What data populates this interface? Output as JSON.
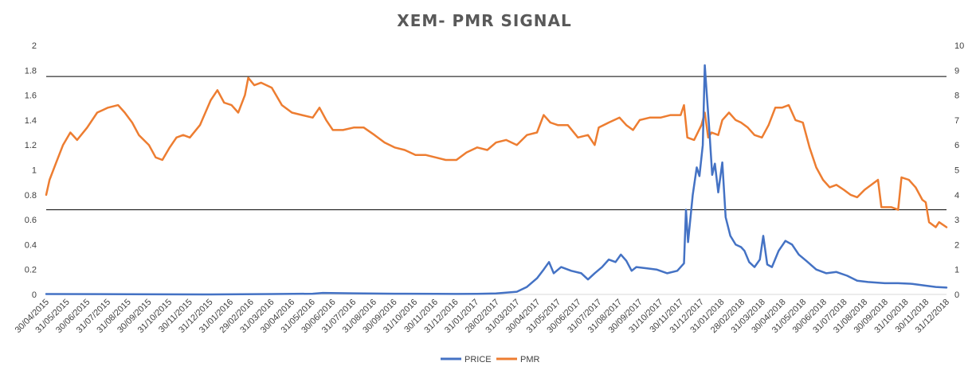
{
  "chart_data": {
    "type": "line",
    "title": "XEM- PMR SIGNAL",
    "xlabel": "",
    "ylabel": "",
    "y_left": {
      "min": 0,
      "max": 2,
      "ticks": [
        "0",
        "0.2",
        "0.4",
        "0.6",
        "0.8",
        "1",
        "1.2",
        "1.4",
        "1.6",
        "1.8",
        "2"
      ]
    },
    "y_right": {
      "min": 0,
      "max": 10,
      "ticks": [
        "0",
        "1",
        "2",
        "3",
        "4",
        "5",
        "6",
        "7",
        "8",
        "9",
        "10"
      ]
    },
    "x_range": [
      "2015-04-30",
      "2018-12-31"
    ],
    "x_tick_labels": [
      "30/04/2015",
      "31/05/2015",
      "30/06/2015",
      "31/07/2015",
      "31/08/2015",
      "30/09/2015",
      "31/10/2015",
      "30/11/2015",
      "31/12/2015",
      "31/01/2016",
      "29/02/2016",
      "31/03/2016",
      "30/04/2016",
      "31/05/2016",
      "30/06/2016",
      "31/07/2016",
      "31/08/2016",
      "30/09/2016",
      "31/10/2016",
      "30/11/2016",
      "31/12/2016",
      "31/01/2017",
      "28/02/2017",
      "31/03/2017",
      "30/04/2017",
      "31/05/2017",
      "30/06/2017",
      "31/07/2017",
      "31/08/2017",
      "30/09/2017",
      "31/10/2017",
      "30/11/2017",
      "31/12/2017",
      "31/01/2018",
      "28/02/2018",
      "31/03/2018",
      "30/04/2018",
      "31/05/2018",
      "30/06/2018",
      "31/07/2018",
      "31/08/2018",
      "30/09/2018",
      "31/10/2018",
      "30/11/2018",
      "31/12/2018"
    ],
    "reference_lines": [
      {
        "axis": "right",
        "value": 8.75
      },
      {
        "axis": "right",
        "value": 3.4
      }
    ],
    "series": [
      {
        "name": "PRICE",
        "axis": "left",
        "color": "#4472C4",
        "points": [
          [
            "2015-04-30",
            0.003
          ],
          [
            "2015-08-31",
            0.002
          ],
          [
            "2015-12-31",
            0.0003
          ],
          [
            "2016-03-31",
            0.003
          ],
          [
            "2016-05-31",
            0.006
          ],
          [
            "2016-06-15",
            0.012
          ],
          [
            "2016-07-31",
            0.009
          ],
          [
            "2016-09-30",
            0.006
          ],
          [
            "2016-11-30",
            0.005
          ],
          [
            "2016-12-31",
            0.004
          ],
          [
            "2017-01-31",
            0.005
          ],
          [
            "2017-02-28",
            0.008
          ],
          [
            "2017-03-15",
            0.015
          ],
          [
            "2017-03-31",
            0.022
          ],
          [
            "2017-04-15",
            0.06
          ],
          [
            "2017-04-30",
            0.13
          ],
          [
            "2017-05-10",
            0.2
          ],
          [
            "2017-05-18",
            0.26
          ],
          [
            "2017-05-25",
            0.17
          ],
          [
            "2017-06-05",
            0.22
          ],
          [
            "2017-06-20",
            0.19
          ],
          [
            "2017-07-05",
            0.17
          ],
          [
            "2017-07-15",
            0.12
          ],
          [
            "2017-07-25",
            0.17
          ],
          [
            "2017-08-05",
            0.22
          ],
          [
            "2017-08-15",
            0.28
          ],
          [
            "2017-08-25",
            0.26
          ],
          [
            "2017-09-02",
            0.32
          ],
          [
            "2017-09-10",
            0.27
          ],
          [
            "2017-09-18",
            0.19
          ],
          [
            "2017-09-25",
            0.22
          ],
          [
            "2017-10-10",
            0.21
          ],
          [
            "2017-10-25",
            0.2
          ],
          [
            "2017-11-10",
            0.17
          ],
          [
            "2017-11-25",
            0.19
          ],
          [
            "2017-12-05",
            0.25
          ],
          [
            "2017-12-08",
            0.68
          ],
          [
            "2017-12-11",
            0.42
          ],
          [
            "2017-12-18",
            0.8
          ],
          [
            "2017-12-24",
            1.02
          ],
          [
            "2017-12-28",
            0.95
          ],
          [
            "2018-01-02",
            1.2
          ],
          [
            "2018-01-05",
            1.84
          ],
          [
            "2018-01-08",
            1.6
          ],
          [
            "2018-01-12",
            1.3
          ],
          [
            "2018-01-16",
            0.96
          ],
          [
            "2018-01-20",
            1.05
          ],
          [
            "2018-01-25",
            0.82
          ],
          [
            "2018-01-31",
            1.06
          ],
          [
            "2018-02-05",
            0.62
          ],
          [
            "2018-02-12",
            0.47
          ],
          [
            "2018-02-20",
            0.4
          ],
          [
            "2018-02-28",
            0.38
          ],
          [
            "2018-03-05",
            0.35
          ],
          [
            "2018-03-12",
            0.26
          ],
          [
            "2018-03-20",
            0.22
          ],
          [
            "2018-03-28",
            0.28
          ],
          [
            "2018-04-02",
            0.47
          ],
          [
            "2018-04-08",
            0.24
          ],
          [
            "2018-04-15",
            0.22
          ],
          [
            "2018-04-25",
            0.35
          ],
          [
            "2018-05-05",
            0.43
          ],
          [
            "2018-05-15",
            0.4
          ],
          [
            "2018-05-25",
            0.32
          ],
          [
            "2018-06-05",
            0.27
          ],
          [
            "2018-06-20",
            0.2
          ],
          [
            "2018-07-05",
            0.17
          ],
          [
            "2018-07-20",
            0.18
          ],
          [
            "2018-08-05",
            0.15
          ],
          [
            "2018-08-20",
            0.11
          ],
          [
            "2018-09-05",
            0.1
          ],
          [
            "2018-09-30",
            0.09
          ],
          [
            "2018-10-20",
            0.09
          ],
          [
            "2018-11-10",
            0.085
          ],
          [
            "2018-11-30",
            0.07
          ],
          [
            "2018-12-15",
            0.06
          ],
          [
            "2018-12-31",
            0.055
          ]
        ]
      },
      {
        "name": "PMR",
        "axis": "right",
        "color": "#ED7D31",
        "points": [
          [
            "2015-04-30",
            4.0
          ],
          [
            "2015-05-05",
            4.6
          ],
          [
            "2015-05-15",
            5.3
          ],
          [
            "2015-05-25",
            6.0
          ],
          [
            "2015-06-05",
            6.5
          ],
          [
            "2015-06-15",
            6.2
          ],
          [
            "2015-06-30",
            6.7
          ],
          [
            "2015-07-15",
            7.3
          ],
          [
            "2015-07-31",
            7.5
          ],
          [
            "2015-08-15",
            7.6
          ],
          [
            "2015-08-25",
            7.3
          ],
          [
            "2015-09-05",
            6.9
          ],
          [
            "2015-09-15",
            6.4
          ],
          [
            "2015-09-30",
            6.0
          ],
          [
            "2015-10-10",
            5.5
          ],
          [
            "2015-10-20",
            5.4
          ],
          [
            "2015-10-31",
            5.9
          ],
          [
            "2015-11-10",
            6.3
          ],
          [
            "2015-11-20",
            6.4
          ],
          [
            "2015-11-30",
            6.3
          ],
          [
            "2015-12-15",
            6.8
          ],
          [
            "2015-12-31",
            7.8
          ],
          [
            "2016-01-10",
            8.2
          ],
          [
            "2016-01-20",
            7.7
          ],
          [
            "2016-01-31",
            7.6
          ],
          [
            "2016-02-10",
            7.3
          ],
          [
            "2016-02-20",
            8.0
          ],
          [
            "2016-02-25",
            8.7
          ],
          [
            "2016-03-05",
            8.4
          ],
          [
            "2016-03-15",
            8.5
          ],
          [
            "2016-03-31",
            8.3
          ],
          [
            "2016-04-15",
            7.6
          ],
          [
            "2016-04-30",
            7.3
          ],
          [
            "2016-05-15",
            7.2
          ],
          [
            "2016-05-31",
            7.1
          ],
          [
            "2016-06-10",
            7.5
          ],
          [
            "2016-06-20",
            7.0
          ],
          [
            "2016-06-30",
            6.6
          ],
          [
            "2016-07-15",
            6.6
          ],
          [
            "2016-07-31",
            6.7
          ],
          [
            "2016-08-15",
            6.7
          ],
          [
            "2016-08-31",
            6.4
          ],
          [
            "2016-09-15",
            6.1
          ],
          [
            "2016-09-30",
            5.9
          ],
          [
            "2016-10-15",
            5.8
          ],
          [
            "2016-10-31",
            5.6
          ],
          [
            "2016-11-15",
            5.6
          ],
          [
            "2016-11-30",
            5.5
          ],
          [
            "2016-12-15",
            5.4
          ],
          [
            "2016-12-31",
            5.4
          ],
          [
            "2017-01-15",
            5.7
          ],
          [
            "2017-01-31",
            5.9
          ],
          [
            "2017-02-15",
            5.8
          ],
          [
            "2017-02-28",
            6.1
          ],
          [
            "2017-03-15",
            6.2
          ],
          [
            "2017-03-31",
            6.0
          ],
          [
            "2017-04-15",
            6.4
          ],
          [
            "2017-04-30",
            6.5
          ],
          [
            "2017-05-10",
            7.2
          ],
          [
            "2017-05-20",
            6.9
          ],
          [
            "2017-05-31",
            6.8
          ],
          [
            "2017-06-15",
            6.8
          ],
          [
            "2017-06-30",
            6.3
          ],
          [
            "2017-07-15",
            6.4
          ],
          [
            "2017-07-25",
            6.0
          ],
          [
            "2017-07-31",
            6.7
          ],
          [
            "2017-08-15",
            6.9
          ],
          [
            "2017-08-31",
            7.1
          ],
          [
            "2017-09-10",
            6.8
          ],
          [
            "2017-09-20",
            6.6
          ],
          [
            "2017-09-30",
            7.0
          ],
          [
            "2017-10-15",
            7.1
          ],
          [
            "2017-10-31",
            7.1
          ],
          [
            "2017-11-15",
            7.2
          ],
          [
            "2017-11-30",
            7.2
          ],
          [
            "2017-12-05",
            7.6
          ],
          [
            "2017-12-10",
            6.3
          ],
          [
            "2017-12-20",
            6.2
          ],
          [
            "2017-12-31",
            6.8
          ],
          [
            "2018-01-05",
            7.3
          ],
          [
            "2018-01-10",
            6.3
          ],
          [
            "2018-01-15",
            6.5
          ],
          [
            "2018-01-25",
            6.4
          ],
          [
            "2018-01-31",
            7.0
          ],
          [
            "2018-02-10",
            7.3
          ],
          [
            "2018-02-20",
            7.0
          ],
          [
            "2018-02-28",
            6.9
          ],
          [
            "2018-03-10",
            6.7
          ],
          [
            "2018-03-20",
            6.4
          ],
          [
            "2018-03-31",
            6.3
          ],
          [
            "2018-04-10",
            6.8
          ],
          [
            "2018-04-20",
            7.5
          ],
          [
            "2018-04-30",
            7.5
          ],
          [
            "2018-05-10",
            7.6
          ],
          [
            "2018-05-20",
            7.0
          ],
          [
            "2018-05-31",
            6.9
          ],
          [
            "2018-06-10",
            5.9
          ],
          [
            "2018-06-20",
            5.1
          ],
          [
            "2018-06-30",
            4.6
          ],
          [
            "2018-07-10",
            4.3
          ],
          [
            "2018-07-20",
            4.4
          ],
          [
            "2018-07-31",
            4.2
          ],
          [
            "2018-08-10",
            4.0
          ],
          [
            "2018-08-20",
            3.9
          ],
          [
            "2018-08-31",
            4.2
          ],
          [
            "2018-09-10",
            4.4
          ],
          [
            "2018-09-20",
            4.6
          ],
          [
            "2018-09-25",
            3.5
          ],
          [
            "2018-09-30",
            3.5
          ],
          [
            "2018-10-10",
            3.5
          ],
          [
            "2018-10-20",
            3.4
          ],
          [
            "2018-10-25",
            4.7
          ],
          [
            "2018-11-05",
            4.6
          ],
          [
            "2018-11-15",
            4.3
          ],
          [
            "2018-11-25",
            3.8
          ],
          [
            "2018-11-30",
            3.7
          ],
          [
            "2018-12-05",
            2.9
          ],
          [
            "2018-12-15",
            2.7
          ],
          [
            "2018-12-20",
            2.9
          ],
          [
            "2018-12-31",
            2.7
          ]
        ]
      }
    ],
    "legend": {
      "position": "bottom",
      "entries": [
        "PRICE",
        "PMR"
      ]
    },
    "grid": false
  }
}
